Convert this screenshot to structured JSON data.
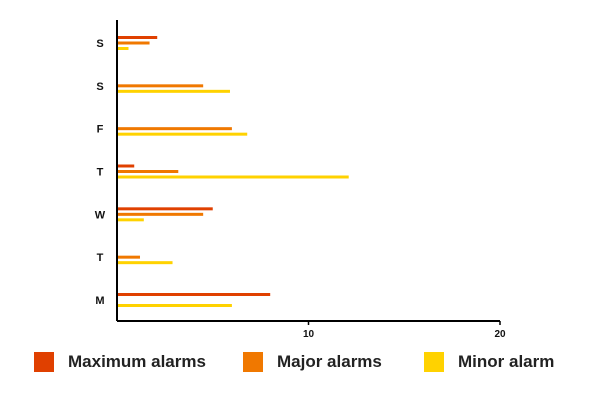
{
  "chart_data": {
    "type": "bar",
    "orientation": "horizontal",
    "categories": [
      "M",
      "T",
      "W",
      "T",
      "F",
      "S",
      "S"
    ],
    "series": [
      {
        "name": "Maximum alarms",
        "color": "#e04000",
        "values": [
          8,
          0,
          5,
          0.9,
          0,
          0,
          2.1
        ]
      },
      {
        "name": "Major alarms",
        "color": "#f07800",
        "values": [
          0,
          1.2,
          4.5,
          3.2,
          6,
          4.5,
          1.7
        ]
      },
      {
        "name": "Minor alarm",
        "color": "#ffd200",
        "values": [
          6,
          2.9,
          1.4,
          12.1,
          6.8,
          5.9,
          0.6
        ]
      }
    ],
    "x_ticks": [
      "10",
      "20"
    ],
    "xlim": [
      0,
      20
    ],
    "grid": false,
    "legend_position": "bottom"
  }
}
